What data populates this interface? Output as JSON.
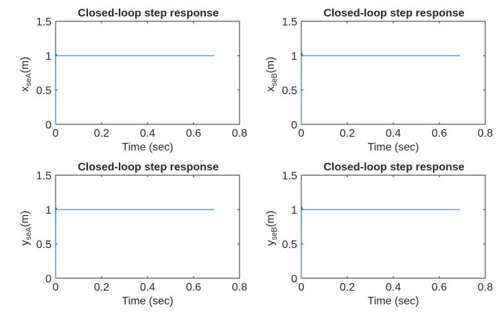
{
  "chart_data": [
    {
      "type": "line",
      "title": "Closed-loop step response",
      "xlabel": "Time (sec)",
      "ylabel": {
        "var": "x",
        "sub": "seA",
        "unit": "(m)"
      },
      "xlim": [
        0,
        0.8
      ],
      "ylim": [
        0,
        1.5
      ],
      "xticks": [
        "0",
        "0.2",
        "0.4",
        "0.6",
        "0.8"
      ],
      "yticks": [
        "0",
        "0.5",
        "1",
        "1.5"
      ],
      "grid": false,
      "color": "#0072BD",
      "series": [
        {
          "x": [
            0,
            0.0005,
            0.003,
            0.006,
            0.01,
            0.69
          ],
          "y": [
            0,
            0.99,
            1.02,
            1.0,
            1.0,
            1.0
          ]
        }
      ]
    },
    {
      "type": "line",
      "title": "Closed-loop step response",
      "xlabel": "Time (sec)",
      "ylabel": {
        "var": "x",
        "sub": "seB",
        "unit": "(m)"
      },
      "xlim": [
        0,
        0.8
      ],
      "ylim": [
        0,
        1.5
      ],
      "xticks": [
        "0",
        "0.2",
        "0.4",
        "0.6",
        "0.8"
      ],
      "yticks": [
        "0",
        "0.5",
        "1",
        "1.5"
      ],
      "grid": false,
      "color": "#0072BD",
      "series": [
        {
          "x": [
            0,
            0.0005,
            0.003,
            0.006,
            0.01,
            0.69
          ],
          "y": [
            0,
            0.99,
            1.03,
            1.0,
            1.0,
            1.0
          ]
        }
      ]
    },
    {
      "type": "line",
      "title": "Closed-loop step response",
      "xlabel": "Time (sec)",
      "ylabel": {
        "var": "y",
        "sub": "seA",
        "unit": "(m)"
      },
      "xlim": [
        0,
        0.8
      ],
      "ylim": [
        0,
        1.5
      ],
      "xticks": [
        "0",
        "0.2",
        "0.4",
        "0.6",
        "0.8"
      ],
      "yticks": [
        "0",
        "0.5",
        "1",
        "1.5"
      ],
      "grid": false,
      "color": "#0072BD",
      "series": [
        {
          "x": [
            0,
            0.0005,
            0.003,
            0.006,
            0.01,
            0.69
          ],
          "y": [
            0,
            0.99,
            1.02,
            1.0,
            1.0,
            1.0
          ]
        }
      ]
    },
    {
      "type": "line",
      "title": "Closed-loop step response",
      "xlabel": "Time (sec)",
      "ylabel": {
        "var": "y",
        "sub": "seB",
        "unit": "(m)"
      },
      "xlim": [
        0,
        0.8
      ],
      "ylim": [
        0,
        1.5
      ],
      "xticks": [
        "0",
        "0.2",
        "0.4",
        "0.6",
        "0.8"
      ],
      "yticks": [
        "0",
        "0.5",
        "1",
        "1.5"
      ],
      "grid": false,
      "color": "#0072BD",
      "series": [
        {
          "x": [
            0,
            0.0005,
            0.003,
            0.006,
            0.01,
            0.69
          ],
          "y": [
            0,
            0.99,
            1.03,
            1.0,
            1.0,
            1.0
          ]
        }
      ]
    }
  ]
}
